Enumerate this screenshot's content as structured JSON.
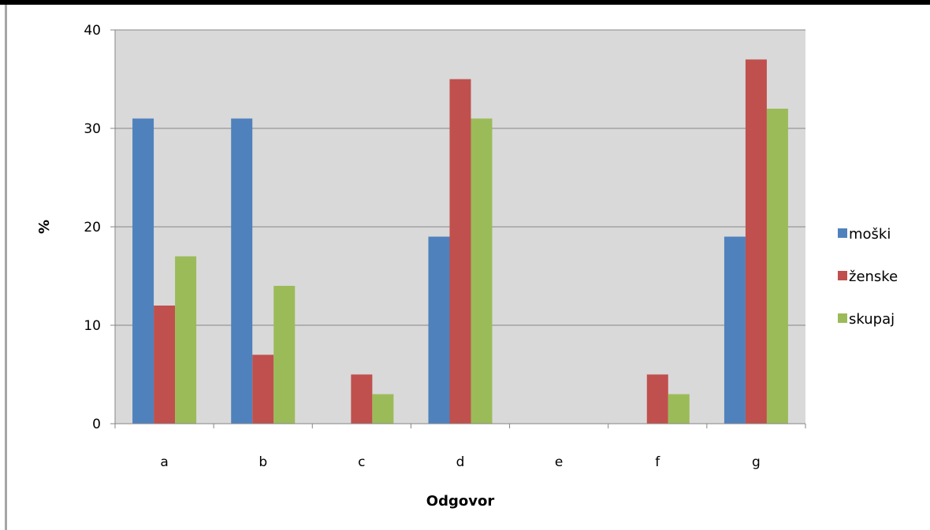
{
  "chart_data": {
    "type": "bar",
    "categories": [
      "a",
      "b",
      "c",
      "d",
      "e",
      "f",
      "g"
    ],
    "series": [
      {
        "name": "moški",
        "color": "#4f81bd",
        "values": [
          31,
          31,
          0,
          19,
          0,
          0,
          19
        ]
      },
      {
        "name": "ženske",
        "color": "#c0504d",
        "values": [
          12,
          7,
          5,
          35,
          0,
          5,
          37
        ]
      },
      {
        "name": "skupaj",
        "color": "#9bbb59",
        "values": [
          17,
          14,
          3,
          31,
          0,
          3,
          32
        ]
      }
    ],
    "xlabel": "Odgovor",
    "ylabel": "%",
    "ylim": [
      0,
      40
    ],
    "yticks": [
      0,
      10,
      20,
      30,
      40
    ],
    "grid": true,
    "legend": "right",
    "plot_background": "#d9d9d9",
    "gridline_color": "#868686"
  }
}
